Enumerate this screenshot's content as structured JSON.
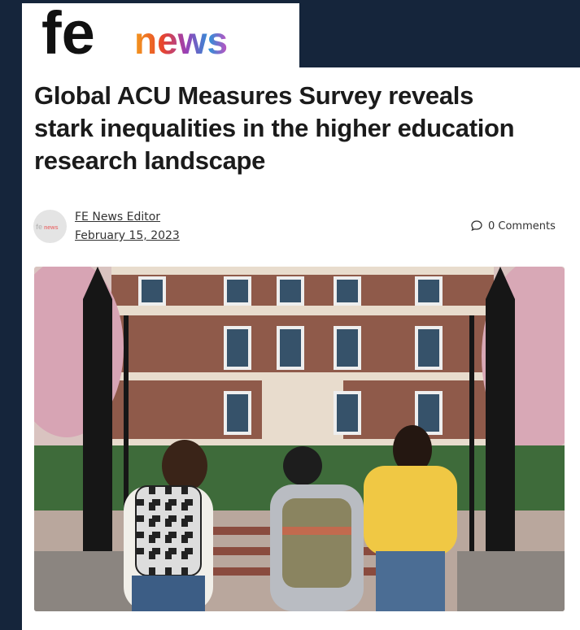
{
  "header": {
    "logo_fe": "fe",
    "logo_news": "news"
  },
  "article": {
    "title_lines": [
      "Global ACU Measures Survey reveals",
      "stark inequalities in the higher education",
      "research landscape"
    ],
    "author": "FE News Editor",
    "date": "February 15, 2023",
    "comments": "0 Comments"
  }
}
